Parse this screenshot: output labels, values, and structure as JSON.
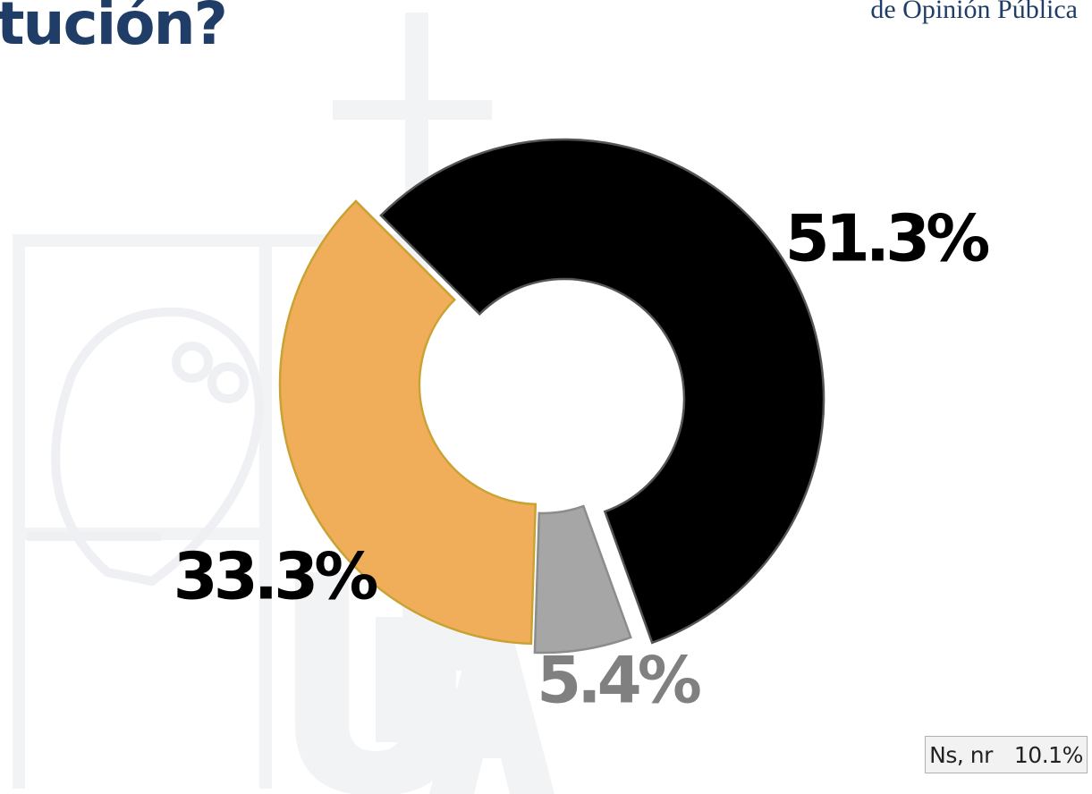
{
  "header": {
    "title": "tución?",
    "brand": "de Opinión Pública"
  },
  "footnote": {
    "label": "Ns, nr",
    "value": "10.1%"
  },
  "chart_data": {
    "type": "pie",
    "variant": "donut",
    "title": "",
    "slices": [
      {
        "value": 51.3,
        "label": "51.3%",
        "color": "#000000",
        "label_color": "#000000"
      },
      {
        "value": 5.4,
        "label": "5.4%",
        "color": "#a6a6a6",
        "label_color": "#808080"
      },
      {
        "value": 33.3,
        "label": "33.3%",
        "color": "#f0ae5a",
        "label_color": "#000000"
      }
    ],
    "exploded": true,
    "legend": "none"
  },
  "colors": {
    "title": "#1f3d66",
    "slice_outline_dark": "#555555",
    "slice_outline_orange": "#c9a233"
  }
}
